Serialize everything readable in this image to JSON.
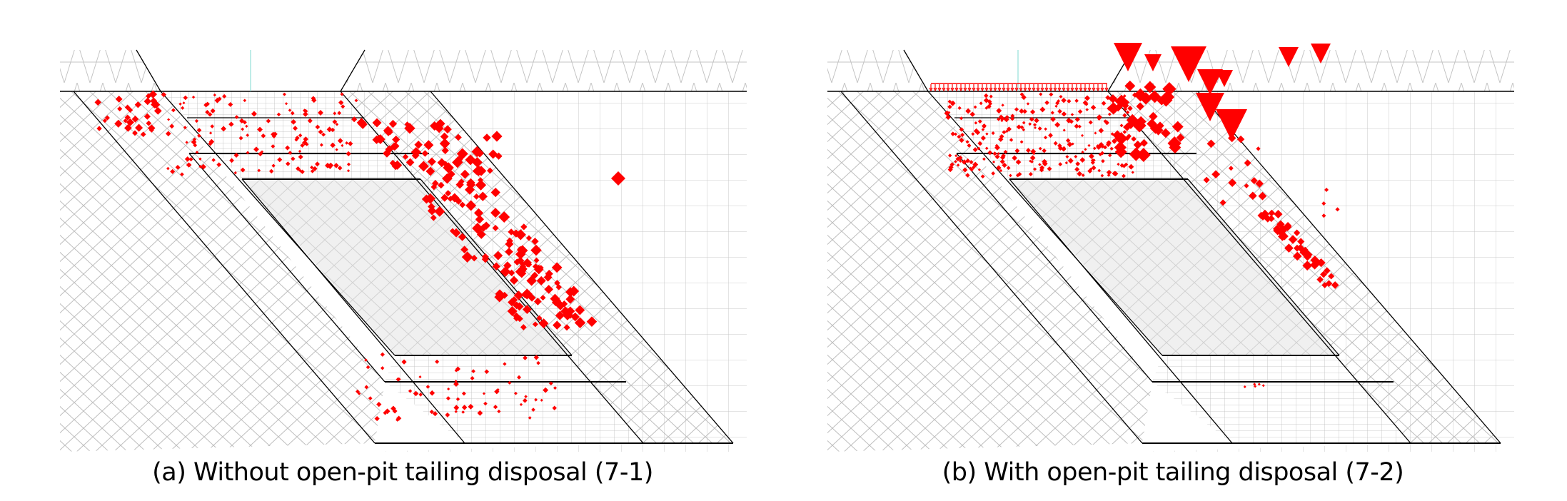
{
  "panels": [
    {
      "id": "a",
      "caption": "(a) Without open-pit tailing disposal (7-1)"
    },
    {
      "id": "b",
      "caption": "(b) With open-pit tailing disposal (7-2)"
    }
  ],
  "colors": {
    "yield_zone": "#ff0000",
    "mesh": "#b4b4b4",
    "ore_body": "#f0f0f0",
    "boundary": "#000000",
    "axis": "#7fd8d0"
  }
}
